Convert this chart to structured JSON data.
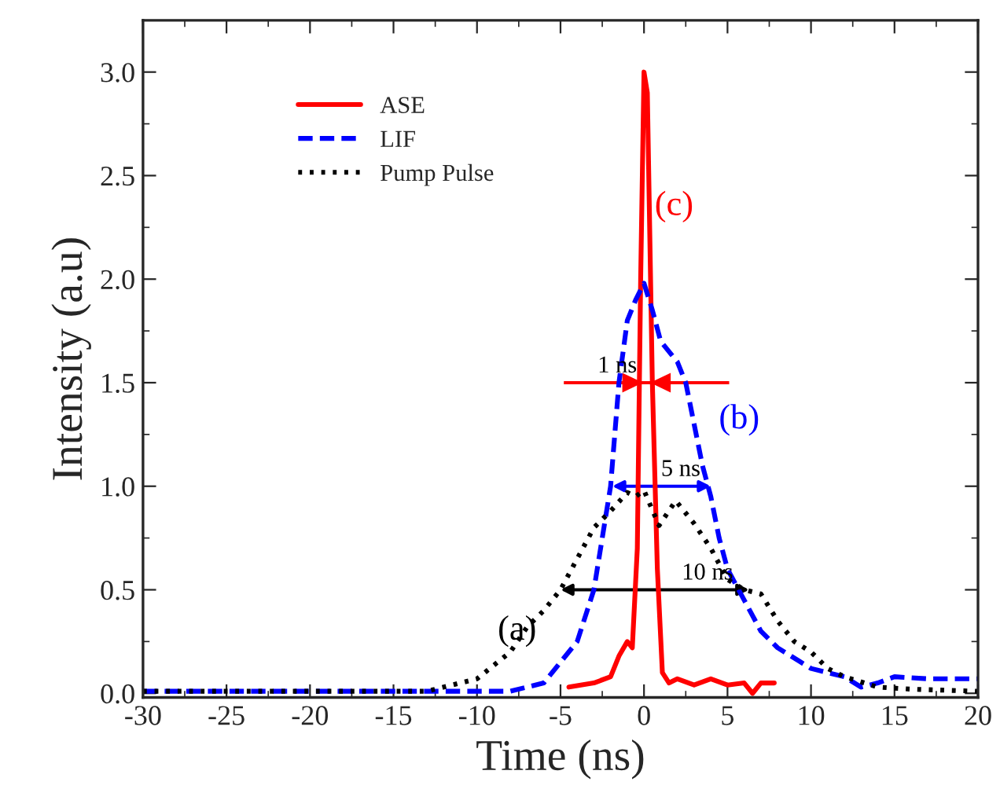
{
  "chart_data": {
    "type": "line",
    "xlabel": "Time (ns)",
    "ylabel": "Intensity (a.u)",
    "x": [
      -4.5,
      -3,
      -2,
      -1.5,
      -1,
      -0.7,
      -0.4,
      -0.2,
      0,
      0.2,
      0.5,
      0.8,
      1.1,
      1.5,
      2,
      3,
      4,
      5,
      6,
      6.5,
      7,
      7.8
    ],
    "series": [
      {
        "name": "ASE",
        "color": "#ff0000",
        "line_style": "solid",
        "values": [
          0.03,
          0.05,
          0.08,
          0.18,
          0.25,
          0.22,
          0.7,
          2.0,
          3.0,
          2.9,
          1.5,
          0.6,
          0.1,
          0.05,
          0.07,
          0.04,
          0.07,
          0.04,
          0.05,
          0.0,
          0.05,
          0.05
        ]
      },
      {
        "name": "LIF",
        "color": "#0000ff",
        "line_style": "dashed",
        "x": [
          -30,
          -20,
          -13,
          -10,
          -8,
          -6,
          -4,
          -3,
          -2,
          -1.5,
          -1,
          -0.5,
          0,
          0.5,
          1,
          2,
          2.5,
          3,
          3.5,
          4,
          4.5,
          5,
          6,
          7,
          8,
          10,
          12,
          13,
          14,
          15,
          17,
          20
        ],
        "values": [
          0.01,
          0.01,
          0.01,
          0.01,
          0.01,
          0.05,
          0.25,
          0.5,
          1.0,
          1.5,
          1.8,
          1.9,
          1.98,
          1.85,
          1.7,
          1.6,
          1.5,
          1.3,
          1.1,
          0.95,
          0.75,
          0.6,
          0.45,
          0.3,
          0.22,
          0.12,
          0.08,
          0.03,
          0.05,
          0.08,
          0.07,
          0.07
        ]
      },
      {
        "name": "Pump Pulse",
        "color": "#000000",
        "line_style": "dotted",
        "x": [
          -30,
          -20,
          -13,
          -10,
          -8,
          -7,
          -6,
          -5,
          -4,
          -3,
          -2,
          -1,
          -0.5,
          0,
          0.9,
          1.9,
          3,
          4,
          5,
          6,
          7,
          8,
          9,
          10,
          11,
          12,
          14,
          16,
          20
        ],
        "values": [
          0.01,
          0.01,
          0.01,
          0.07,
          0.2,
          0.32,
          0.4,
          0.5,
          0.65,
          0.8,
          0.88,
          0.97,
          0.95,
          0.98,
          0.81,
          0.93,
          0.82,
          0.7,
          0.55,
          0.5,
          0.48,
          0.35,
          0.25,
          0.2,
          0.12,
          0.08,
          0.03,
          0.02,
          0.01
        ]
      }
    ],
    "annotations": [
      "(c)",
      "(b)",
      "(a)",
      {
        "text": "1 ns",
        "x": 0.15,
        "y": 1.5
      },
      {
        "text": "5 ns",
        "x": 1.05,
        "y": 1.0
      },
      {
        "text": "10 ns",
        "x": 0.65,
        "y": 0.5
      }
    ],
    "xlim": [
      -30,
      20
    ],
    "ylim": [
      -0.02,
      3.25
    ],
    "xticks": [
      -30,
      -25,
      -20,
      -15,
      -10,
      -5,
      0,
      5,
      10,
      15,
      20
    ],
    "yticks": [
      {
        "value": 0,
        "label": "0.0"
      },
      {
        "value": 0.5,
        "label": "0.5"
      },
      {
        "value": 1,
        "label": "1.0"
      },
      {
        "value": 1.5,
        "label": "1.5"
      },
      {
        "value": 2,
        "label": "2.0"
      },
      {
        "value": 2.5,
        "label": "2.5"
      },
      {
        "value": 3,
        "label": "3.0"
      }
    ],
    "legend": "top left",
    "grid": false
  }
}
